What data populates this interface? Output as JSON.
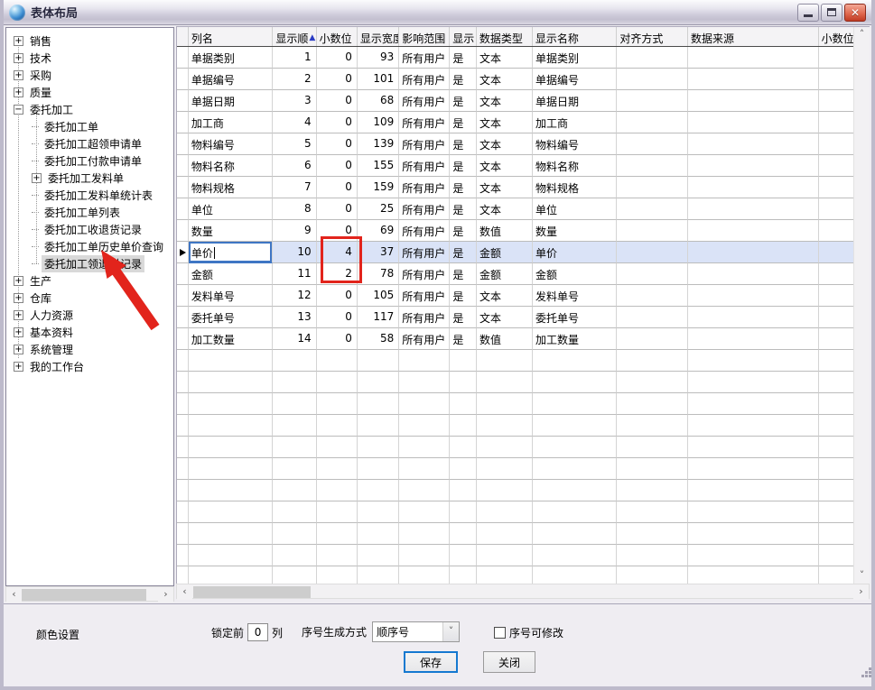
{
  "window": {
    "title": "表体布局"
  },
  "icons": {
    "close": "✕",
    "sort_asc": "▲",
    "expand": "+",
    "collapse": "−",
    "dropdown": "˅",
    "scroll_left": "‹",
    "scroll_right": "›",
    "scroll_up": "˄",
    "scroll_down": "˅"
  },
  "colors": {
    "annotation_red": "#e2241c",
    "selected_row_bg": "#dae3f7",
    "sort_arrow_blue": "#2b3cc4"
  },
  "tree": {
    "items": [
      {
        "label": "销售",
        "toggle": "plus",
        "level": 0,
        "selected": false
      },
      {
        "label": "技术",
        "toggle": "plus",
        "level": 0,
        "selected": false
      },
      {
        "label": "采购",
        "toggle": "plus",
        "level": 0,
        "selected": false
      },
      {
        "label": "质量",
        "toggle": "plus",
        "level": 0,
        "selected": false
      },
      {
        "label": "委托加工",
        "toggle": "minus",
        "level": 0,
        "selected": false
      },
      {
        "label": "委托加工单",
        "toggle": "none",
        "level": 1,
        "selected": false
      },
      {
        "label": "委托加工超领申请单",
        "toggle": "none",
        "level": 1,
        "selected": false
      },
      {
        "label": "委托加工付款申请单",
        "toggle": "none",
        "level": 1,
        "selected": false
      },
      {
        "label": "委托加工发料单",
        "toggle": "plus",
        "level": 1,
        "selected": false
      },
      {
        "label": "委托加工发料单统计表",
        "toggle": "none",
        "level": 1,
        "selected": false
      },
      {
        "label": "委托加工单列表",
        "toggle": "none",
        "level": 1,
        "selected": false
      },
      {
        "label": "委托加工收退货记录",
        "toggle": "none",
        "level": 1,
        "selected": false
      },
      {
        "label": "委托加工单历史单价查询",
        "toggle": "none",
        "level": 1,
        "selected": false
      },
      {
        "label": "委托加工领退料记录",
        "toggle": "none",
        "level": 1,
        "selected": true
      },
      {
        "label": "生产",
        "toggle": "plus",
        "level": 0,
        "selected": false
      },
      {
        "label": "仓库",
        "toggle": "plus",
        "level": 0,
        "selected": false
      },
      {
        "label": "人力资源",
        "toggle": "plus",
        "level": 0,
        "selected": false
      },
      {
        "label": "基本资料",
        "toggle": "plus",
        "level": 0,
        "selected": false
      },
      {
        "label": "系统管理",
        "toggle": "plus",
        "level": 0,
        "selected": false
      },
      {
        "label": "我的工作台",
        "toggle": "plus",
        "level": 0,
        "selected": false
      }
    ]
  },
  "table": {
    "columns": [
      "列名",
      "显示顺",
      "小数位",
      "显示宽度",
      "影响范围",
      "显示",
      "数据类型",
      "显示名称",
      "对齐方式",
      "数据来源",
      "小数位"
    ],
    "sort_column": 1,
    "selected_row": 9,
    "rows": [
      {
        "cells": [
          "单据类别",
          "1",
          "0",
          "93",
          "所有用户",
          "是",
          "文本",
          "单据类别",
          "",
          "",
          ""
        ]
      },
      {
        "cells": [
          "单据编号",
          "2",
          "0",
          "101",
          "所有用户",
          "是",
          "文本",
          "单据编号",
          "",
          "",
          ""
        ]
      },
      {
        "cells": [
          "单据日期",
          "3",
          "0",
          "68",
          "所有用户",
          "是",
          "文本",
          "单据日期",
          "",
          "",
          ""
        ]
      },
      {
        "cells": [
          "加工商",
          "4",
          "0",
          "109",
          "所有用户",
          "是",
          "文本",
          "加工商",
          "",
          "",
          ""
        ]
      },
      {
        "cells": [
          "物料编号",
          "5",
          "0",
          "139",
          "所有用户",
          "是",
          "文本",
          "物料编号",
          "",
          "",
          ""
        ]
      },
      {
        "cells": [
          "物料名称",
          "6",
          "0",
          "155",
          "所有用户",
          "是",
          "文本",
          "物料名称",
          "",
          "",
          ""
        ]
      },
      {
        "cells": [
          "物料规格",
          "7",
          "0",
          "159",
          "所有用户",
          "是",
          "文本",
          "物料规格",
          "",
          "",
          ""
        ]
      },
      {
        "cells": [
          "单位",
          "8",
          "0",
          "25",
          "所有用户",
          "是",
          "文本",
          "单位",
          "",
          "",
          ""
        ]
      },
      {
        "cells": [
          "数量",
          "9",
          "0",
          "69",
          "所有用户",
          "是",
          "数值",
          "数量",
          "",
          "",
          ""
        ]
      },
      {
        "cells": [
          "单价",
          "10",
          "4",
          "37",
          "所有用户",
          "是",
          "金额",
          "单价",
          "",
          "",
          ""
        ]
      },
      {
        "cells": [
          "金额",
          "11",
          "2",
          "78",
          "所有用户",
          "是",
          "金额",
          "金额",
          "",
          "",
          ""
        ]
      },
      {
        "cells": [
          "发料单号",
          "12",
          "0",
          "105",
          "所有用户",
          "是",
          "文本",
          "发料单号",
          "",
          "",
          ""
        ]
      },
      {
        "cells": [
          "委托单号",
          "13",
          "0",
          "117",
          "所有用户",
          "是",
          "文本",
          "委托单号",
          "",
          "",
          ""
        ]
      },
      {
        "cells": [
          "加工数量",
          "14",
          "0",
          "58",
          "所有用户",
          "是",
          "数值",
          "加工数量",
          "",
          "",
          ""
        ]
      }
    ]
  },
  "footer": {
    "color_settings": "颜色设置",
    "lock_prefix": "锁定前",
    "lock_value": "0",
    "lock_suffix": "列",
    "seq_label": "序号生成方式",
    "seq_value": "顺序号",
    "seq_editable": "序号可修改",
    "save": "保存",
    "close": "关闭"
  }
}
